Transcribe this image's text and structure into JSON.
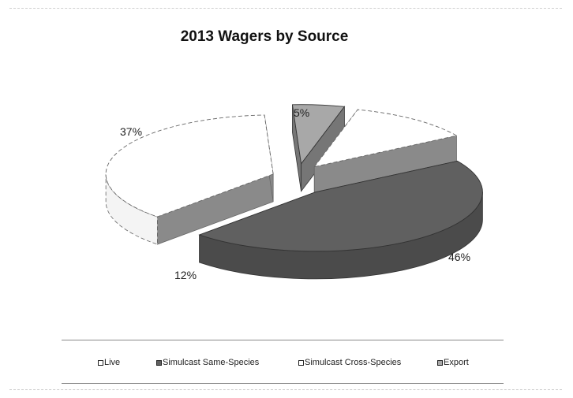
{
  "chart_data": {
    "type": "pie",
    "style": "3d-exploded",
    "title": "2013 Wagers by Source",
    "slices": [
      {
        "label": "Live",
        "percent": 12,
        "value_label": "12%",
        "color": "#ffffff"
      },
      {
        "label": "Simulcast Same-Species",
        "percent": 46,
        "value_label": "46%",
        "color": "#606060"
      },
      {
        "label": "Simulcast Cross-Species",
        "percent": 37,
        "value_label": "37%",
        "color": "#ffffff"
      },
      {
        "label": "Export",
        "percent": 5,
        "value_label": "5%",
        "color": "#a8a8a8"
      }
    ],
    "legend_position": "bottom"
  }
}
